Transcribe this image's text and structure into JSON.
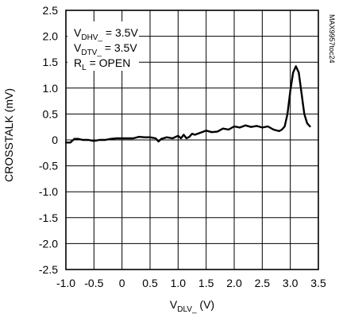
{
  "chart_data": {
    "type": "line",
    "xlabel_main": "V",
    "xlabel_sub": "DLV_",
    "xlabel_unit": " (V)",
    "ylabel": "CROSSTALK (mV)",
    "xlim": [
      -1.0,
      3.5
    ],
    "ylim": [
      -2.5,
      2.5
    ],
    "x_ticks": [
      "-1.0",
      "-0.5",
      "0",
      "0.5",
      "1.0",
      "1.5",
      "2.0",
      "2.5",
      "3.0",
      "3.5"
    ],
    "y_ticks": [
      "2.5",
      "2.0",
      "1.5",
      "1.0",
      "0.5",
      "0",
      "-0.5",
      "-1.0",
      "-1.5",
      "-2.0",
      "-2.5"
    ],
    "grid": true,
    "annotations": [
      {
        "main": "V",
        "sub": "DHV_",
        "rest": " = 3.5V"
      },
      {
        "main": "V",
        "sub": "DTV_",
        "rest": " = 3.5V"
      },
      {
        "main": "R",
        "sub": "L",
        "rest": " = OPEN"
      }
    ],
    "part_number": "MAX9957toc24",
    "series": [
      {
        "x": [
          -1.0,
          -0.92,
          -0.85,
          -0.78,
          -0.7,
          -0.6,
          -0.5,
          -0.4,
          -0.3,
          -0.2,
          -0.1,
          0.0,
          0.1,
          0.2,
          0.3,
          0.4,
          0.5,
          0.6,
          0.65,
          0.7,
          0.8,
          0.9,
          1.0,
          1.05,
          1.1,
          1.15,
          1.2,
          1.25,
          1.3,
          1.4,
          1.5,
          1.6,
          1.7,
          1.8,
          1.9,
          2.0,
          2.1,
          2.2,
          2.3,
          2.4,
          2.5,
          2.6,
          2.7,
          2.8,
          2.85,
          2.9,
          2.95,
          3.0,
          3.05,
          3.1,
          3.15,
          3.2,
          3.25,
          3.3,
          3.35
        ],
        "y": [
          -0.05,
          -0.05,
          0.02,
          0.02,
          0.0,
          0.0,
          -0.02,
          0.0,
          0.0,
          0.02,
          0.03,
          0.03,
          0.03,
          0.03,
          0.06,
          0.05,
          0.05,
          0.03,
          -0.03,
          0.02,
          0.05,
          0.03,
          0.08,
          0.03,
          0.1,
          0.03,
          0.06,
          0.12,
          0.1,
          0.14,
          0.18,
          0.15,
          0.16,
          0.22,
          0.2,
          0.26,
          0.24,
          0.28,
          0.25,
          0.27,
          0.24,
          0.26,
          0.2,
          0.17,
          0.2,
          0.26,
          0.5,
          0.95,
          1.3,
          1.42,
          1.3,
          0.9,
          0.5,
          0.32,
          0.26
        ]
      }
    ]
  }
}
